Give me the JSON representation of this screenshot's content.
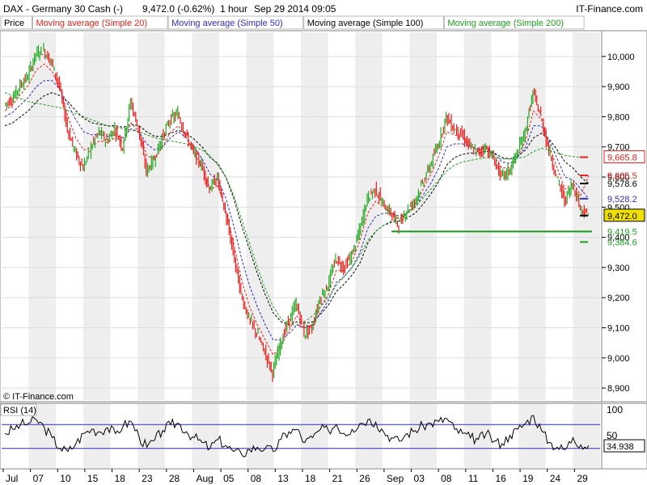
{
  "header": {
    "symbol": "DAX - Germany 30 Cash (-)",
    "price_change": "9,472.0 (-0.62%)",
    "interval": "1 hour",
    "datetime": "Sep 29 2014 09:05",
    "brand": "IT-Finance.com"
  },
  "legend": [
    {
      "label": "Price",
      "color": "#000000"
    },
    {
      "label": "Moving average (Simple 20)",
      "color": "#e8201c"
    },
    {
      "label": "Moving average (Simple 50)",
      "color": "#2c2cc0"
    },
    {
      "label": "Moving average (Simple 100)",
      "color": "#000000"
    },
    {
      "label": "Moving average (Simple 200)",
      "color": "#1fa01f"
    }
  ],
  "watermark": "© IT-Finance.com",
  "price_labels": [
    {
      "text": "9,665.8",
      "value": 9665.8,
      "color": "#e8201c",
      "boxed": true
    },
    {
      "text": "9,605.5",
      "value": 9605.5,
      "color": "#e8201c",
      "boxed": false
    },
    {
      "text": "9,578.6",
      "value": 9578.6,
      "color": "#000000",
      "boxed": false
    },
    {
      "text": "9,528.2",
      "value": 9528.2,
      "color": "#2c2cc0",
      "boxed": false
    },
    {
      "text": "9,472.0",
      "value": 9472.0,
      "color": "#000000",
      "boxed": true,
      "fill": "#f0e000"
    },
    {
      "text": "9,419.5",
      "value": 9419.5,
      "color": "#1fa01f",
      "boxed": false
    },
    {
      "text": "9,384.6",
      "value": 9384.6,
      "color": "#1fa01f",
      "boxed": false
    }
  ],
  "rsi_panel": {
    "label": "RSI (14)",
    "ticks": [
      "100",
      "50"
    ],
    "value_label": "34.938",
    "levels": [
      70,
      30
    ]
  },
  "colors": {
    "up": "#22aa22",
    "down": "#e8201c",
    "grid_band": "#eeeeee",
    "support": "#1a9a1a"
  },
  "chart_data": {
    "type": "line",
    "title": "DAX - Germany 30 Cash (-)",
    "ylim": [
      8860,
      10080
    ],
    "y_ticks": [
      8900,
      9000,
      9100,
      9200,
      9300,
      9400,
      9500,
      9600,
      9700,
      9800,
      9900,
      10000
    ],
    "y_tick_labels": [
      "8,900",
      "9,000",
      "9,100",
      "9,200",
      "9,300",
      "9,400",
      "9,500",
      "9,600",
      "9,700",
      "9,800",
      "9,900",
      "10,000"
    ],
    "x_tick_labels": [
      "Jul",
      "07",
      "10",
      "15",
      "18",
      "23",
      "28",
      "Aug",
      "05",
      "08",
      "13",
      "18",
      "21",
      "26",
      "Sep",
      "03",
      "08",
      "11",
      "16",
      "19",
      "24",
      "29"
    ],
    "support_level": 9419.5,
    "series": [
      {
        "name": "Price",
        "values": [
          9840,
          9860,
          9905,
          9935,
          10010,
          10020,
          9980,
          9900,
          9760,
          9680,
          9630,
          9700,
          9750,
          9720,
          9760,
          9700,
          9850,
          9760,
          9620,
          9660,
          9730,
          9790,
          9810,
          9740,
          9680,
          9640,
          9560,
          9600,
          9480,
          9350,
          9210,
          9130,
          9080,
          9020,
          8950,
          9050,
          9120,
          9180,
          9080,
          9100,
          9200,
          9240,
          9330,
          9300,
          9340,
          9420,
          9530,
          9560,
          9510,
          9480,
          9440,
          9490,
          9520,
          9580,
          9640,
          9710,
          9800,
          9760,
          9740,
          9700,
          9680,
          9700,
          9660,
          9600,
          9620,
          9680,
          9750,
          9880,
          9800,
          9690,
          9600,
          9520,
          9580,
          9500,
          9470
        ]
      },
      {
        "name": "Moving average (Simple 20)",
        "values": [
          9820,
          9840,
          9875,
          9905,
          9955,
          9975,
          9950,
          9890,
          9800,
          9730,
          9690,
          9700,
          9720,
          9715,
          9730,
          9715,
          9780,
          9750,
          9670,
          9660,
          9700,
          9750,
          9770,
          9730,
          9680,
          9630,
          9560,
          9570,
          9490,
          9380,
          9260,
          9170,
          9110,
          9060,
          9010,
          9040,
          9090,
          9140,
          9100,
          9110,
          9170,
          9210,
          9290,
          9290,
          9320,
          9390,
          9480,
          9520,
          9500,
          9480,
          9460,
          9480,
          9510,
          9560,
          9610,
          9670,
          9750,
          9740,
          9730,
          9700,
          9690,
          9700,
          9670,
          9630,
          9630,
          9670,
          9720,
          9820,
          9790,
          9700,
          9630,
          9560,
          9580,
          9540,
          9605
        ]
      },
      {
        "name": "Moving average (Simple 50)",
        "values": [
          9800,
          9815,
          9840,
          9865,
          9900,
          9920,
          9920,
          9890,
          9840,
          9790,
          9750,
          9740,
          9740,
          9735,
          9740,
          9730,
          9760,
          9750,
          9710,
          9690,
          9700,
          9730,
          9750,
          9730,
          9700,
          9660,
          9610,
          9590,
          9530,
          9440,
          9330,
          9240,
          9170,
          9110,
          9060,
          9060,
          9080,
          9110,
          9100,
          9110,
          9150,
          9190,
          9250,
          9270,
          9300,
          9350,
          9430,
          9470,
          9480,
          9480,
          9470,
          9480,
          9500,
          9540,
          9580,
          9630,
          9700,
          9710,
          9710,
          9700,
          9695,
          9700,
          9680,
          9650,
          9645,
          9665,
          9700,
          9770,
          9770,
          9720,
          9660,
          9600,
          9590,
          9560,
          9528
        ]
      },
      {
        "name": "Moving average (Simple 100)",
        "values": [
          9770,
          9780,
          9800,
          9820,
          9850,
          9870,
          9880,
          9870,
          9850,
          9820,
          9795,
          9780,
          9775,
          9770,
          9770,
          9765,
          9775,
          9770,
          9750,
          9735,
          9735,
          9745,
          9755,
          9745,
          9725,
          9700,
          9665,
          9645,
          9600,
          9530,
          9440,
          9360,
          9280,
          9210,
          9150,
          9120,
          9110,
          9120,
          9115,
          9120,
          9145,
          9175,
          9220,
          9245,
          9275,
          9315,
          9380,
          9420,
          9440,
          9450,
          9455,
          9465,
          9480,
          9510,
          9545,
          9585,
          9640,
          9665,
          9675,
          9680,
          9680,
          9685,
          9680,
          9665,
          9660,
          9670,
          9690,
          9730,
          9745,
          9725,
          9690,
          9650,
          9630,
          9600,
          9578
        ]
      },
      {
        "name": "Moving average (Simple 200)",
        "values": [
          9880,
          9870,
          9860,
          9850,
          9845,
          9840,
          9835,
          9830,
          9820,
          9810,
          9800,
          9790,
          9780,
          9770,
          9765,
          9760,
          9755,
          9750,
          9740,
          9730,
          9725,
          9720,
          9715,
          9710,
          9700,
          9690,
          9670,
          9640,
          9600,
          9540,
          9460,
          9380,
          9300,
          9230,
          9170,
          9130,
          9110,
          9110,
          9120,
          9140,
          9170,
          9200,
          9240,
          9270,
          9300,
          9340,
          9390,
          9420,
          9440,
          9455,
          9465,
          9480,
          9500,
          9530,
          9560,
          9590,
          9620,
          9640,
          9650,
          9655,
          9660,
          9665,
          9665,
          9660,
          9660,
          9662,
          9668,
          9685,
          9695,
          9690,
          9680,
          9672,
          9668,
          9666,
          9665
        ]
      }
    ],
    "rsi": {
      "name": "RSI (14)",
      "ylim": [
        0,
        100
      ],
      "values": [
        55,
        62,
        70,
        72,
        78,
        65,
        48,
        30,
        25,
        38,
        55,
        62,
        58,
        65,
        55,
        68,
        75,
        50,
        32,
        44,
        60,
        70,
        72,
        58,
        48,
        40,
        30,
        45,
        35,
        25,
        20,
        28,
        32,
        30,
        25,
        45,
        58,
        62,
        40,
        48,
        62,
        60,
        70,
        55,
        62,
        72,
        78,
        74,
        58,
        48,
        42,
        55,
        60,
        68,
        72,
        75,
        80,
        62,
        55,
        48,
        45,
        55,
        42,
        38,
        52,
        62,
        72,
        85,
        60,
        40,
        32,
        28,
        48,
        36,
        34.938
      ]
    }
  }
}
